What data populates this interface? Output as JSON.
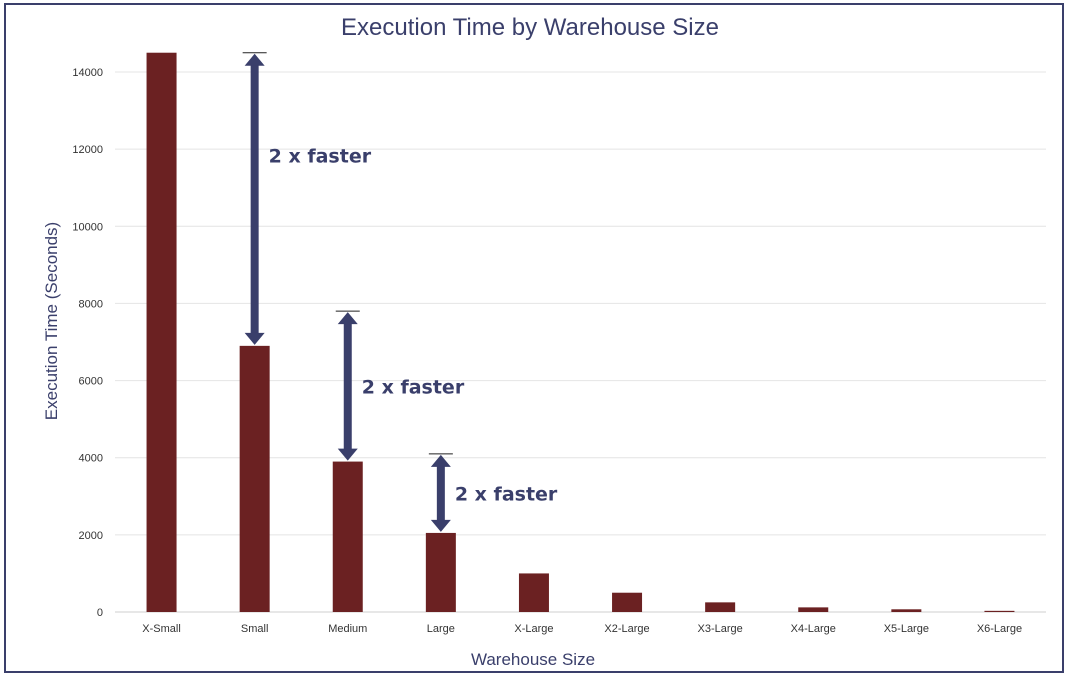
{
  "chart_data": {
    "type": "bar",
    "title": "Execution Time by Warehouse Size",
    "xlabel": "Warehouse Size",
    "ylabel": "Execution Time (Seconds)",
    "categories": [
      "X-Small",
      "Small",
      "Medium",
      "Large",
      "X-Large",
      "X2-Large",
      "X3-Large",
      "X4-Large",
      "X5-Large",
      "X6-Large"
    ],
    "values": [
      14500,
      6900,
      3900,
      2050,
      1000,
      500,
      250,
      120,
      70,
      30
    ],
    "ylim": [
      0,
      14000
    ],
    "yticks": [
      0,
      2000,
      4000,
      6000,
      8000,
      10000,
      12000,
      14000
    ],
    "grid": true,
    "bar_color": "#6b2122",
    "annotation_color": "#3a3f6b",
    "annotations": [
      {
        "text": "2 x faster",
        "from_category": "X-Small",
        "to_category": "Small"
      },
      {
        "text": "2 x faster",
        "from_category": "Small",
        "to_category": "Medium"
      },
      {
        "text": "2 x faster",
        "from_category": "Medium",
        "to_category": "Large"
      }
    ]
  }
}
